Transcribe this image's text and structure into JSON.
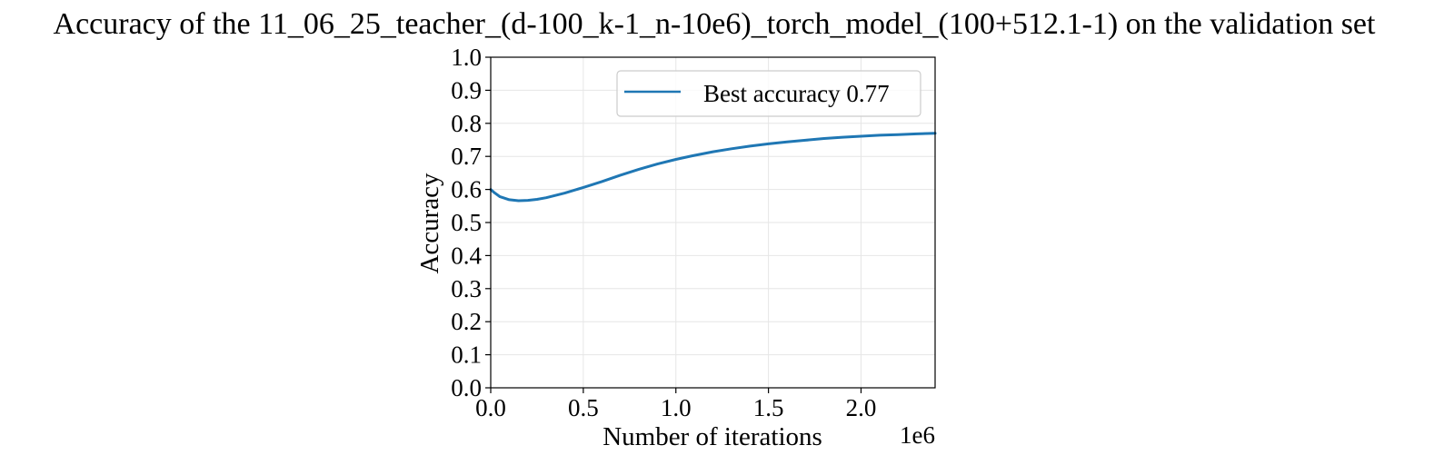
{
  "chart_data": {
    "type": "line",
    "title": "Accuracy of the 11_06_25_teacher_(d-100_k-1_n-10e6)_torch_model_(100+512.1-1) on the validation set",
    "xlabel": "Number of iterations",
    "ylabel": "Accuracy",
    "x_offset_label": "1e6",
    "xlim": [
      0,
      2.4
    ],
    "ylim": [
      0,
      1.0
    ],
    "x_ticks": [
      0.0,
      0.5,
      1.0,
      1.5,
      2.0
    ],
    "x_tick_labels": [
      "0.0",
      "0.5",
      "1.0",
      "1.5",
      "2.0"
    ],
    "y_ticks": [
      0.0,
      0.1,
      0.2,
      0.3,
      0.4,
      0.5,
      0.6,
      0.7,
      0.8,
      0.9,
      1.0
    ],
    "y_tick_labels": [
      "0.0",
      "0.1",
      "0.2",
      "0.3",
      "0.4",
      "0.5",
      "0.6",
      "0.7",
      "0.8",
      "0.9",
      "1.0"
    ],
    "grid": true,
    "legend_position": "upper right",
    "series": [
      {
        "name": "Best accuracy 0.77",
        "color": "#1f77b4",
        "x": [
          0.0,
          0.02,
          0.05,
          0.1,
          0.15,
          0.2,
          0.25,
          0.3,
          0.4,
          0.5,
          0.6,
          0.7,
          0.8,
          0.9,
          1.0,
          1.1,
          1.2,
          1.3,
          1.4,
          1.5,
          1.6,
          1.7,
          1.8,
          1.9,
          2.0,
          2.1,
          2.2,
          2.3,
          2.4
        ],
        "y": [
          0.6,
          0.59,
          0.578,
          0.569,
          0.566,
          0.567,
          0.57,
          0.575,
          0.589,
          0.606,
          0.624,
          0.643,
          0.661,
          0.677,
          0.691,
          0.703,
          0.714,
          0.723,
          0.731,
          0.738,
          0.744,
          0.749,
          0.754,
          0.758,
          0.761,
          0.764,
          0.766,
          0.768,
          0.77
        ]
      }
    ]
  }
}
